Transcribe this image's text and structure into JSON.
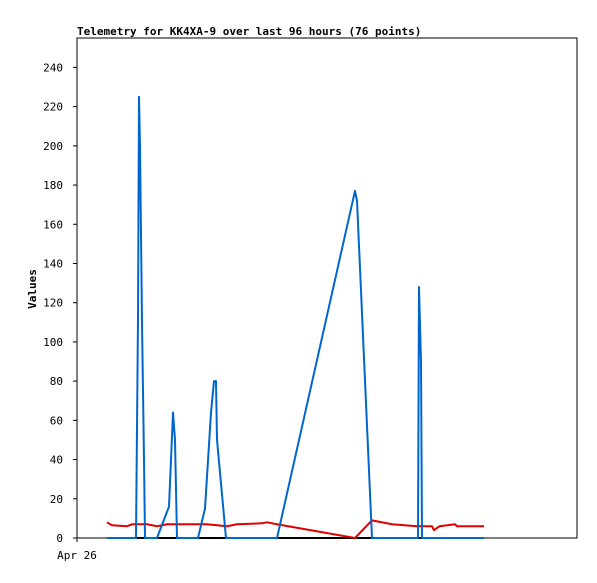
{
  "chart_data": {
    "type": "line",
    "title": "Telemetry for KK4XA-9 over last 96 hours (76 points)",
    "y_label": "Values",
    "xlim": [
      0,
      100
    ],
    "xticks": [
      {
        "value": 0,
        "label": "Apr 26"
      }
    ],
    "ylim": [
      0,
      255
    ],
    "yticks": [
      0,
      20,
      40,
      60,
      80,
      100,
      120,
      140,
      160,
      180,
      200,
      220,
      240
    ],
    "grid": false,
    "series": [
      {
        "color": "#000000",
        "x": [
          6,
          81.4
        ],
        "values": [
          0,
          0
        ]
      },
      {
        "color": "#e00000",
        "x": [
          6,
          7,
          10,
          11,
          14,
          16,
          18,
          26,
          30,
          32,
          37,
          38,
          40,
          55.6,
          59,
          63,
          68,
          71,
          71.4,
          72.5,
          75.6,
          76,
          81.4
        ],
        "values": [
          8,
          6.5,
          6,
          7,
          7,
          6,
          7,
          7,
          6,
          7,
          7.5,
          8,
          7,
          0,
          9,
          7,
          6,
          6,
          4,
          6,
          7,
          6,
          6
        ]
      },
      {
        "color": "#0066cc",
        "x": [
          6,
          11.8,
          12.2,
          12.4,
          12.6,
          13,
          13.4,
          13.6,
          16,
          18.4,
          19.2,
          19.6,
          20,
          24.2,
          25.6,
          26.8,
          27.4,
          27.8,
          28,
          29.8,
          40,
          55.6,
          56,
          59,
          68.2,
          68.4,
          68.8,
          69,
          81.4
        ],
        "values": [
          0,
          0,
          112,
          225,
          200,
          110,
          40,
          0,
          0,
          16,
          64,
          50,
          0,
          0,
          15,
          64,
          80,
          80,
          50,
          0,
          0,
          177,
          172,
          0,
          0,
          128,
          90,
          0,
          0
        ]
      }
    ]
  }
}
